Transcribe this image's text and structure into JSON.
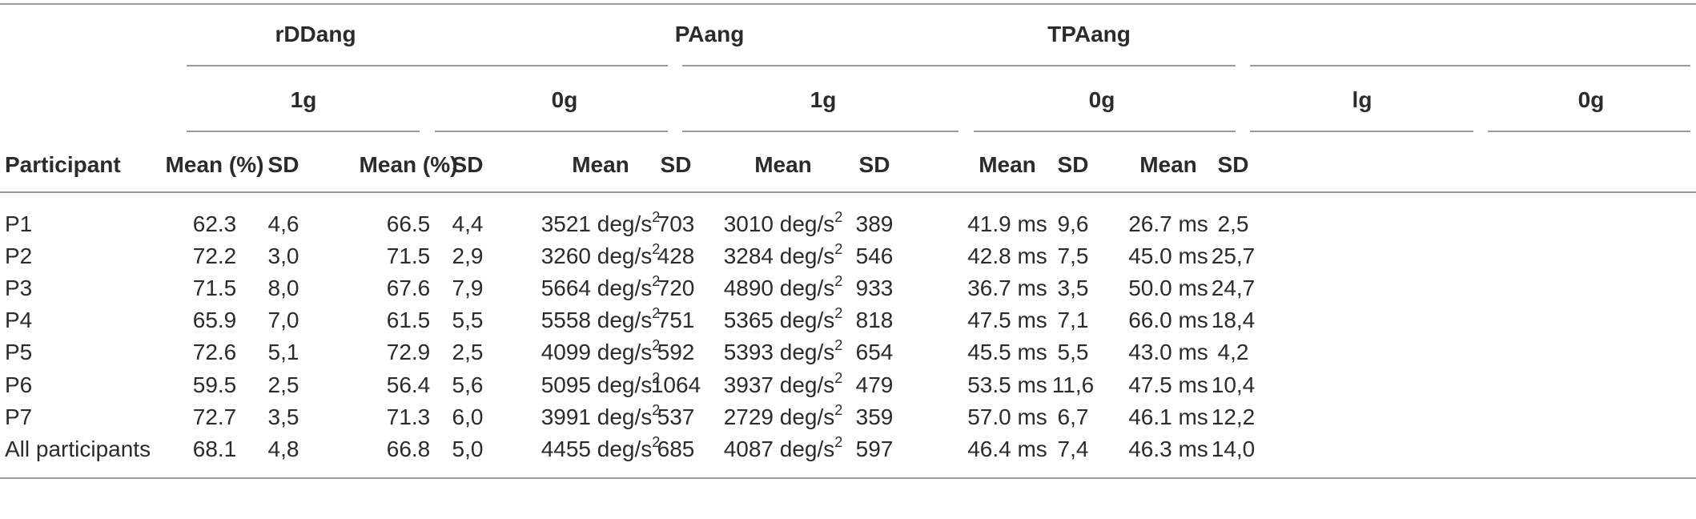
{
  "table": {
    "groups": [
      "rDDang",
      "PAang",
      "TPAang"
    ],
    "conditions": [
      "1g",
      "0g",
      "1g",
      "0g",
      "lg",
      "0g"
    ],
    "columns": [
      "Participant",
      "Mean (%)",
      "SD",
      "Mean (%)",
      "SD",
      "Mean",
      "SD",
      "Mean",
      "SD",
      "Mean",
      "SD",
      "Mean",
      "SD"
    ],
    "unit_power": "2",
    "rows": [
      [
        "P1",
        "62.3",
        "4,6",
        "66.5",
        "4,4",
        "3521 deg/s",
        "703",
        "3010 deg/s",
        "389",
        "41.9 ms",
        "9,6",
        "26.7 ms",
        "2,5"
      ],
      [
        "P2",
        "72.2",
        "3,0",
        "71.5",
        "2,9",
        "3260 deg/s",
        "428",
        "3284 deg/s",
        "546",
        "42.8 ms",
        "7,5",
        "45.0 ms",
        "25,7"
      ],
      [
        "P3",
        "71.5",
        "8,0",
        "67.6",
        "7,9",
        "5664 deg/s",
        "720",
        "4890 deg/s",
        "933",
        "36.7 ms",
        "3,5",
        "50.0 ms",
        "24,7"
      ],
      [
        "P4",
        "65.9",
        "7,0",
        "61.5",
        "5,5",
        "5558 deg/s",
        "751",
        "5365 deg/s",
        "818",
        "47.5 ms",
        "7,1",
        "66.0 ms",
        "18,4"
      ],
      [
        "P5",
        "72.6",
        "5,1",
        "72.9",
        "2,5",
        "4099 deg/s",
        "592",
        "5393 deg/s",
        "654",
        "45.5 ms",
        "5,5",
        "43.0 ms",
        "4,2"
      ],
      [
        "P6",
        "59.5",
        "2,5",
        "56.4",
        "5,6",
        "5095 deg/s",
        "1064",
        "3937 deg/s",
        "479",
        "53.5 ms",
        "11,6",
        "47.5 ms",
        "10,4"
      ],
      [
        "P7",
        "72.7",
        "3,5",
        "71.3",
        "6,0",
        "3991 deg/s",
        "537",
        "2729 deg/s",
        "359",
        "57.0 ms",
        "6,7",
        "46.1 ms",
        "12,2"
      ],
      [
        "All participants",
        "68.1",
        "4,8",
        "66.8",
        "5,0",
        "4455 deg/s",
        "685",
        "4087 deg/s",
        "597",
        "46.4 ms",
        "7,4",
        "46.3 ms",
        "14,0"
      ]
    ]
  }
}
